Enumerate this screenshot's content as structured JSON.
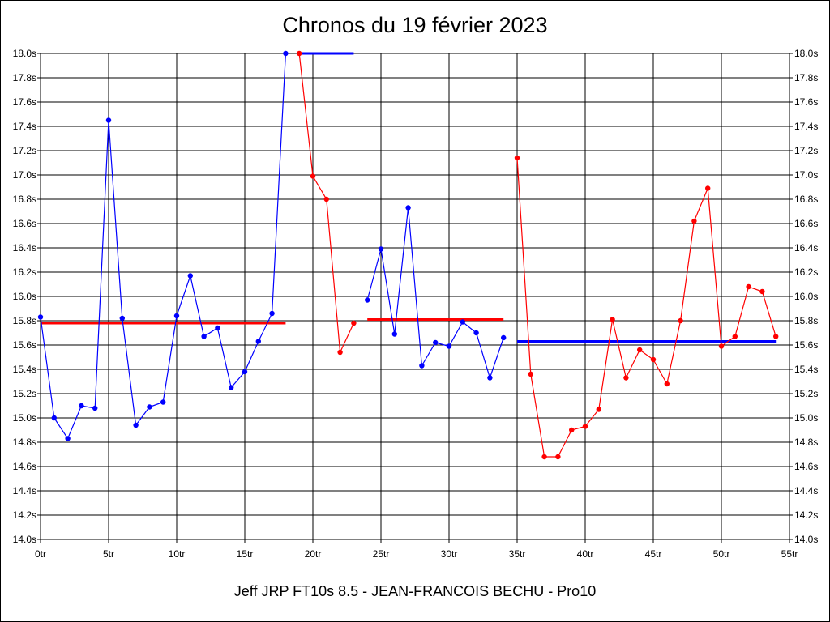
{
  "chart_data": {
    "type": "line",
    "title": "Chronos du 19 février 2023",
    "footer": "Jeff JRP FT10s 8.5 - JEAN-FRANCOIS BECHU - Pro10",
    "xlim": [
      0,
      55
    ],
    "ylim": [
      14.0,
      18.0
    ],
    "x_ticks": [
      {
        "value": 0,
        "label": "0tr"
      },
      {
        "value": 5,
        "label": "5tr"
      },
      {
        "value": 10,
        "label": "10tr"
      },
      {
        "value": 15,
        "label": "15tr"
      },
      {
        "value": 20,
        "label": "20tr"
      },
      {
        "value": 25,
        "label": "25tr"
      },
      {
        "value": 30,
        "label": "30tr"
      },
      {
        "value": 35,
        "label": "35tr"
      },
      {
        "value": 40,
        "label": "40tr"
      },
      {
        "value": 45,
        "label": "45tr"
      },
      {
        "value": 50,
        "label": "50tr"
      },
      {
        "value": 55,
        "label": "55tr"
      }
    ],
    "y_ticks": [
      {
        "value": 14.0,
        "label": "14.0s"
      },
      {
        "value": 14.2,
        "label": "14.2s"
      },
      {
        "value": 14.4,
        "label": "14.4s"
      },
      {
        "value": 14.6,
        "label": "14.6s"
      },
      {
        "value": 14.8,
        "label": "14.8s"
      },
      {
        "value": 15.0,
        "label": "15.0s"
      },
      {
        "value": 15.2,
        "label": "15.2s"
      },
      {
        "value": 15.4,
        "label": "15.4s"
      },
      {
        "value": 15.6,
        "label": "15.6s"
      },
      {
        "value": 15.8,
        "label": "15.8s"
      },
      {
        "value": 16.0,
        "label": "16.0s"
      },
      {
        "value": 16.2,
        "label": "16.2s"
      },
      {
        "value": 16.4,
        "label": "16.4s"
      },
      {
        "value": 16.6,
        "label": "16.6s"
      },
      {
        "value": 16.8,
        "label": "16.8s"
      },
      {
        "value": 17.0,
        "label": "17.0s"
      },
      {
        "value": 17.2,
        "label": "17.2s"
      },
      {
        "value": 17.4,
        "label": "17.4s"
      },
      {
        "value": 17.6,
        "label": "17.6s"
      },
      {
        "value": 17.8,
        "label": "17.8s"
      },
      {
        "value": 18.0,
        "label": "18.0s"
      }
    ],
    "grid": true,
    "series": [
      {
        "color": "#0000ff",
        "x": [
          0,
          1,
          2,
          3,
          4,
          5,
          6,
          7,
          8,
          9,
          10,
          11,
          12,
          13,
          14,
          15,
          16,
          17,
          18
        ],
        "y": [
          15.83,
          15.0,
          14.83,
          15.1,
          15.08,
          17.45,
          15.82,
          14.94,
          15.09,
          15.13,
          15.84,
          16.17,
          15.67,
          15.74,
          15.25,
          15.38,
          15.63,
          15.86,
          18.0
        ]
      },
      {
        "color": "#ff0000",
        "x": [
          19,
          20,
          21,
          22,
          23
        ],
        "y": [
          18.0,
          16.99,
          16.8,
          15.54,
          15.78
        ]
      },
      {
        "color": "#0000ff",
        "x": [
          24,
          25,
          26,
          27,
          28,
          29,
          30,
          31,
          32,
          33,
          34
        ],
        "y": [
          15.97,
          16.39,
          15.69,
          16.73,
          15.43,
          15.62,
          15.59,
          15.79,
          15.7,
          15.33,
          15.66
        ]
      },
      {
        "color": "#ff0000",
        "x": [
          35,
          36,
          37,
          38,
          39,
          40,
          41,
          42,
          43,
          44,
          45,
          46,
          47,
          48,
          49,
          50,
          51,
          52,
          53,
          54
        ],
        "y": [
          17.14,
          15.36,
          14.68,
          14.68,
          14.9,
          14.93,
          15.07,
          15.81,
          15.33,
          15.56,
          15.48,
          15.28,
          15.8,
          16.62,
          16.89,
          15.59,
          15.67,
          16.08,
          16.04,
          15.67
        ]
      }
    ],
    "averages": [
      {
        "color": "#ff0000",
        "x": [
          0,
          18
        ],
        "y": 15.78
      },
      {
        "color": "#0000ff",
        "x": [
          19,
          23
        ],
        "y": 18.0
      },
      {
        "color": "#ff0000",
        "x": [
          24,
          34
        ],
        "y": 15.81
      },
      {
        "color": "#0000ff",
        "x": [
          35,
          54
        ],
        "y": 15.63
      }
    ]
  }
}
